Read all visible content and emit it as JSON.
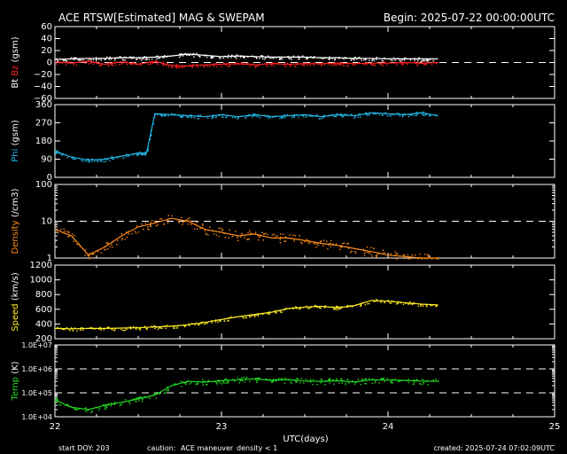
{
  "header": {
    "title": "ACE RTSW[Estimated] MAG & SWEPAM",
    "begin": "Begin: 2025-07-22 00:00:00UTC"
  },
  "footer": {
    "start_doy": "start DOY: 203",
    "caution_label": "caution:",
    "caution_item1": "ACE maneuver",
    "caution_item2": "density < 1",
    "created": "created: 2025-07-24 07:02:09UTC"
  },
  "colors": {
    "background": "#000000",
    "axis": "#ffffff",
    "bt": "#ffffff",
    "bz": "#ff2020",
    "phi": "#22b8e8",
    "density": "#ff8c1a",
    "speed": "#ffee22",
    "temp": "#22dd22",
    "caution_maneuver": "#ffee22",
    "caution_density": "#ff8c1a"
  },
  "chart_data": {
    "type": "scatter",
    "xlabel": "UTC(days)",
    "xlim": [
      22,
      25
    ],
    "xticks": [
      "22",
      "23",
      "24",
      "25"
    ],
    "panels": [
      {
        "id": "mag",
        "ylabel_parts": [
          {
            "text": "Bt",
            "color": "#ffffff"
          },
          {
            "text": " Bz",
            "color": "#ff2020"
          },
          {
            "text": " (gsm)",
            "color": "#ffffff"
          }
        ],
        "ylim": [
          -60,
          60
        ],
        "yticks": [
          "60",
          "40",
          "20",
          "0",
          "−20",
          "−40",
          "−60"
        ],
        "ytick_values": [
          60,
          40,
          20,
          0,
          -20,
          -40,
          -60
        ],
        "dashed_lines": [
          0
        ],
        "series": [
          {
            "name": "Bt",
            "color": "#ffffff",
            "x": [
              22.0,
              22.1,
              22.2,
              22.3,
              22.4,
              22.5,
              22.6,
              22.7,
              22.8,
              22.9,
              23.0,
              23.1,
              23.2,
              23.3,
              23.4,
              23.5,
              23.6,
              23.7,
              23.8,
              23.9,
              24.0,
              24.1,
              24.2,
              24.3
            ],
            "y": [
              5,
              6,
              7,
              7,
              8,
              8,
              9,
              11,
              14,
              12,
              10,
              11,
              10,
              9,
              9,
              9,
              8,
              8,
              7,
              7,
              6,
              6,
              6,
              6
            ]
          },
          {
            "name": "Bz",
            "color": "#ff2020",
            "x": [
              22.0,
              22.1,
              22.2,
              22.3,
              22.4,
              22.5,
              22.6,
              22.7,
              22.8,
              22.9,
              23.0,
              23.1,
              23.2,
              23.3,
              23.4,
              23.5,
              23.6,
              23.7,
              23.8,
              23.9,
              24.0,
              24.1,
              24.2,
              24.3
            ],
            "y": [
              1,
              -1,
              2,
              -3,
              1,
              -3,
              2,
              -5,
              -6,
              -4,
              -3,
              -2,
              -4,
              -2,
              -3,
              -2,
              -2,
              -1,
              -2,
              -1,
              -1,
              0,
              -1,
              0
            ]
          }
        ]
      },
      {
        "id": "phi",
        "ylabel_parts": [
          {
            "text": "Phi",
            "color": "#22b8e8"
          },
          {
            "text": " (gsm)",
            "color": "#ffffff"
          }
        ],
        "ylim": [
          0,
          360
        ],
        "yticks": [
          "360",
          "270",
          "180",
          "90",
          "0"
        ],
        "ytick_values": [
          360,
          270,
          180,
          90,
          0
        ],
        "dashed_lines": [],
        "series": [
          {
            "name": "Phi",
            "color": "#22b8e8",
            "x": [
              22.0,
              22.1,
              22.2,
              22.3,
              22.4,
              22.5,
              22.55,
              22.6,
              22.7,
              22.8,
              22.9,
              23.0,
              23.1,
              23.2,
              23.3,
              23.4,
              23.5,
              23.6,
              23.7,
              23.8,
              23.9,
              24.0,
              24.1,
              24.2,
              24.3
            ],
            "y": [
              130,
              100,
              85,
              90,
              105,
              120,
              120,
              315,
              310,
              305,
              300,
              310,
              300,
              310,
              300,
              305,
              310,
              300,
              310,
              305,
              320,
              315,
              310,
              320,
              305
            ]
          }
        ]
      },
      {
        "id": "density",
        "ylabel_parts": [
          {
            "text": "Density",
            "color": "#ff8c1a"
          },
          {
            "text": " (/cm3)",
            "color": "#ffffff"
          }
        ],
        "yscale": "log",
        "ylim": [
          1,
          100
        ],
        "yticks": [
          "100",
          "10",
          "1"
        ],
        "ytick_values": [
          100,
          10,
          1
        ],
        "dashed_lines": [
          10
        ],
        "series": [
          {
            "name": "Density",
            "color": "#ff8c1a",
            "x": [
              22.0,
              22.1,
              22.2,
              22.3,
              22.4,
              22.5,
              22.6,
              22.7,
              22.8,
              22.9,
              23.0,
              23.1,
              23.2,
              23.3,
              23.4,
              23.5,
              23.6,
              23.7,
              23.8,
              23.9,
              24.0,
              24.1,
              24.2,
              24.3
            ],
            "y": [
              6,
              4,
              1.2,
              2,
              4,
              7,
              9,
              12,
              10,
              6,
              5,
              4,
              4.5,
              3.5,
              3.5,
              3,
              2.5,
              2.2,
              1.8,
              1.5,
              1.2,
              1.1,
              1.0,
              1.0
            ]
          }
        ]
      },
      {
        "id": "speed",
        "ylabel_parts": [
          {
            "text": "Speed",
            "color": "#ffee22"
          },
          {
            "text": " (km/s)",
            "color": "#ffffff"
          }
        ],
        "ylim": [
          200,
          1200
        ],
        "yticks": [
          "1200",
          "1000",
          "800",
          "600",
          "400",
          "200"
        ],
        "ytick_values": [
          1200,
          1000,
          800,
          600,
          400,
          200
        ],
        "dashed_lines": [],
        "series": [
          {
            "name": "Speed",
            "color": "#ffee22",
            "x": [
              22.0,
              22.1,
              22.2,
              22.3,
              22.4,
              22.5,
              22.6,
              22.7,
              22.8,
              22.9,
              23.0,
              23.1,
              23.2,
              23.3,
              23.4,
              23.5,
              23.6,
              23.7,
              23.8,
              23.9,
              24.0,
              24.1,
              24.2,
              24.3
            ],
            "y": [
              340,
              335,
              340,
              340,
              345,
              350,
              360,
              370,
              390,
              420,
              460,
              500,
              530,
              560,
              610,
              630,
              640,
              620,
              650,
              720,
              710,
              690,
              670,
              660
            ]
          }
        ]
      },
      {
        "id": "temp",
        "ylabel_parts": [
          {
            "text": "Temp",
            "color": "#22dd22"
          },
          {
            "text": " (K)",
            "color": "#ffffff"
          }
        ],
        "yscale": "log",
        "ylim": [
          10000,
          10000000
        ],
        "yticks": [
          "1.0E+07",
          "1.0E+06",
          "1.0E+05",
          "1.0E+04"
        ],
        "ytick_values": [
          10000000,
          1000000,
          100000,
          10000
        ],
        "dashed_lines": [
          1000000,
          100000
        ],
        "series": [
          {
            "name": "Temp",
            "color": "#22dd22",
            "x": [
              22.0,
              22.1,
              22.2,
              22.3,
              22.4,
              22.5,
              22.6,
              22.7,
              22.8,
              22.9,
              23.0,
              23.1,
              23.2,
              23.3,
              23.4,
              23.5,
              23.6,
              23.7,
              23.8,
              23.9,
              24.0,
              24.1,
              24.2,
              24.3
            ],
            "y": [
              50000,
              25000,
              20000,
              30000,
              40000,
              55000,
              80000,
              200000,
              300000,
              280000,
              320000,
              350000,
              380000,
              330000,
              360000,
              310000,
              300000,
              320000,
              280000,
              350000,
              340000,
              330000,
              310000,
              300000
            ]
          }
        ]
      }
    ]
  }
}
